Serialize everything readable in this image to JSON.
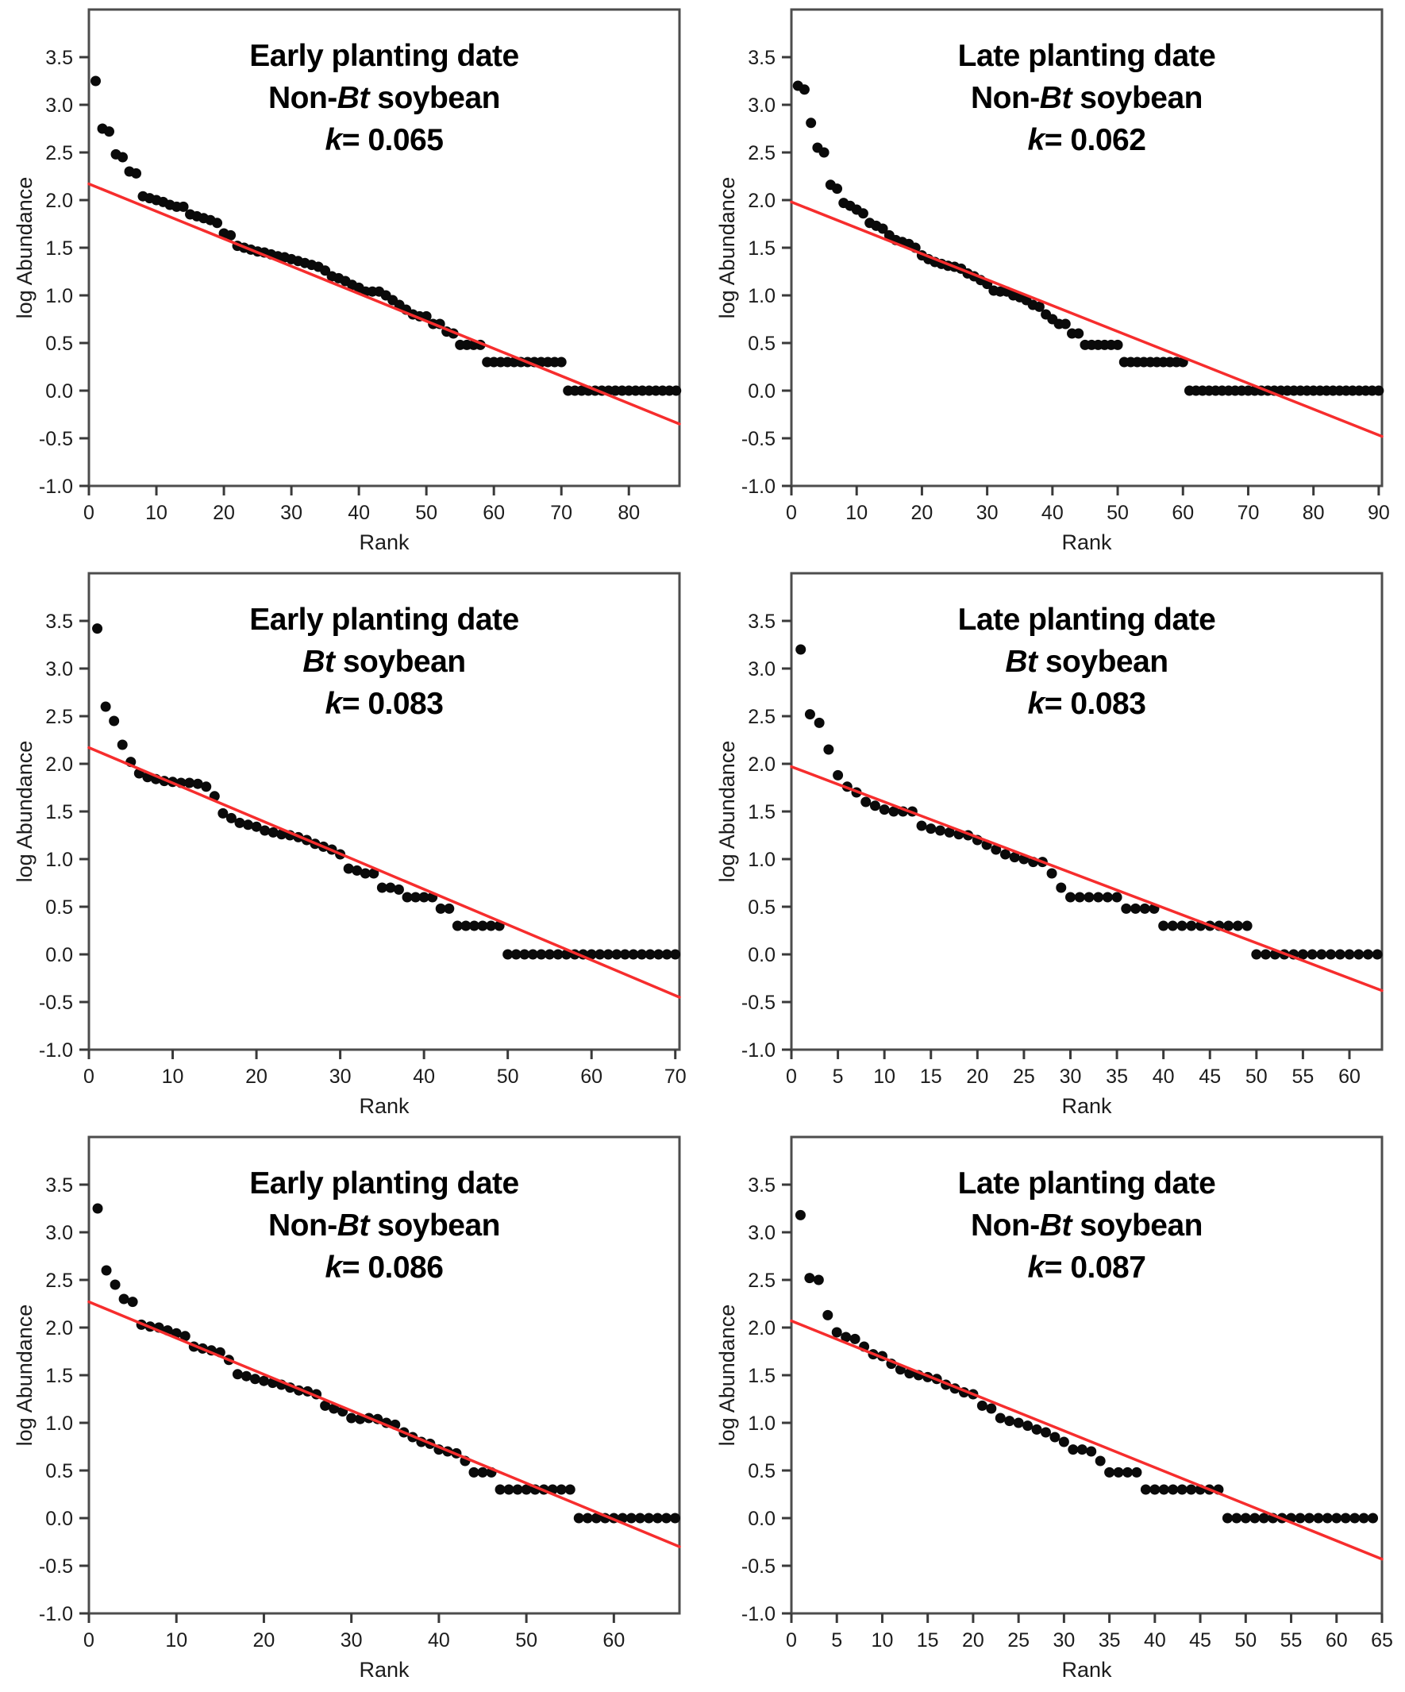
{
  "figure": {
    "ylabel": "log Abundance",
    "xlabel": "Rank",
    "colors": {
      "point": "#0a0a0a",
      "fit_line": "#f62d2d",
      "frame": "#4d4d4d",
      "tick": "#3a3a3a",
      "title_text": "#000000"
    }
  },
  "chart_data": [
    {
      "type": "scatter",
      "title": {
        "line1": "Early planting date",
        "line2_prefix": "Non-",
        "line2_italic": "Bt",
        "line2_suffix": " soybean",
        "k_italic": "k",
        "k_rest": "= 0.065"
      },
      "k": 0.065,
      "xlabel": "Rank",
      "ylabel": "log Abundance",
      "xlim": [
        0,
        87.5
      ],
      "ylim": [
        -1.0,
        4.0
      ],
      "xticks": [
        0,
        10,
        20,
        30,
        40,
        50,
        60,
        70,
        80
      ],
      "yticks": [
        3.5,
        3.0,
        2.5,
        2.0,
        1.5,
        1.0,
        0.5,
        0.0,
        -0.5,
        -1.0
      ],
      "max_rank": 87,
      "values": [
        3.25,
        2.75,
        2.72,
        2.48,
        2.45,
        2.3,
        2.28,
        2.04,
        2.02,
        2.0,
        1.98,
        1.95,
        1.93,
        1.93,
        1.85,
        1.83,
        1.81,
        1.79,
        1.76,
        1.65,
        1.63,
        1.52,
        1.5,
        1.48,
        1.46,
        1.45,
        1.43,
        1.41,
        1.4,
        1.38,
        1.36,
        1.34,
        1.32,
        1.3,
        1.26,
        1.2,
        1.18,
        1.15,
        1.11,
        1.08,
        1.04,
        1.04,
        1.04,
        1.0,
        0.95,
        0.9,
        0.85,
        0.8,
        0.78,
        0.78,
        0.7,
        0.7,
        0.62,
        0.6,
        0.48,
        0.48,
        0.48,
        0.48,
        0.3,
        0.3,
        0.3,
        0.3,
        0.3,
        0.3,
        0.3,
        0.3,
        0.3,
        0.3,
        0.3,
        0.3,
        0.0,
        0.0,
        0.0,
        0.0,
        0.0,
        0.0,
        0.0,
        0.0,
        0.0,
        0.0,
        0.0,
        0.0,
        0.0,
        0.0,
        0.0,
        0.0,
        0.0
      ],
      "fit_line": {
        "x1": 0,
        "y1": 2.17,
        "x2": 87.5,
        "y2": -0.35
      }
    },
    {
      "type": "scatter",
      "title": {
        "line1": "Late planting date",
        "line2_prefix": "Non-",
        "line2_italic": "Bt",
        "line2_suffix": " soybean",
        "k_italic": "k",
        "k_rest": "= 0.062"
      },
      "k": 0.062,
      "xlabel": "Rank",
      "ylabel": "log Abundance",
      "xlim": [
        0,
        90.5
      ],
      "ylim": [
        -1.0,
        4.0
      ],
      "xticks": [
        0,
        10,
        20,
        30,
        40,
        50,
        60,
        70,
        80,
        90
      ],
      "yticks": [
        3.5,
        3.0,
        2.5,
        2.0,
        1.5,
        1.0,
        0.5,
        0.0,
        -0.5,
        -1.0
      ],
      "max_rank": 90,
      "values": [
        3.2,
        3.16,
        2.81,
        2.55,
        2.5,
        2.16,
        2.12,
        1.97,
        1.94,
        1.9,
        1.86,
        1.76,
        1.73,
        1.7,
        1.63,
        1.58,
        1.56,
        1.54,
        1.5,
        1.42,
        1.38,
        1.35,
        1.33,
        1.31,
        1.3,
        1.28,
        1.23,
        1.2,
        1.16,
        1.12,
        1.05,
        1.04,
        1.04,
        1.0,
        0.98,
        0.95,
        0.9,
        0.88,
        0.8,
        0.75,
        0.7,
        0.7,
        0.6,
        0.6,
        0.48,
        0.48,
        0.48,
        0.48,
        0.48,
        0.48,
        0.3,
        0.3,
        0.3,
        0.3,
        0.3,
        0.3,
        0.3,
        0.3,
        0.3,
        0.3,
        0.0,
        0.0,
        0.0,
        0.0,
        0.0,
        0.0,
        0.0,
        0.0,
        0.0,
        0.0,
        0.0,
        0.0,
        0.0,
        0.0,
        0.0,
        0.0,
        0.0,
        0.0,
        0.0,
        0.0,
        0.0,
        0.0,
        0.0,
        0.0,
        0.0,
        0.0,
        0.0,
        0.0,
        0.0,
        0.0
      ],
      "fit_line": {
        "x1": 0,
        "y1": 1.98,
        "x2": 90.5,
        "y2": -0.48
      }
    },
    {
      "type": "scatter",
      "title": {
        "line1": "Early planting date",
        "line2_prefix": "",
        "line2_italic": "Bt",
        "line2_suffix": " soybean",
        "k_italic": "k",
        "k_rest": "= 0.083"
      },
      "k": 0.083,
      "xlabel": "Rank",
      "ylabel": "log Abundance",
      "xlim": [
        0,
        70.5
      ],
      "ylim": [
        -1.0,
        4.0
      ],
      "xticks": [
        0,
        10,
        20,
        30,
        40,
        50,
        60,
        70
      ],
      "yticks": [
        3.5,
        3.0,
        2.5,
        2.0,
        1.5,
        1.0,
        0.5,
        0.0,
        -0.5,
        -1.0
      ],
      "max_rank": 70,
      "values": [
        3.42,
        2.6,
        2.45,
        2.2,
        2.02,
        1.9,
        1.86,
        1.84,
        1.82,
        1.81,
        1.8,
        1.8,
        1.79,
        1.76,
        1.66,
        1.48,
        1.43,
        1.38,
        1.36,
        1.34,
        1.3,
        1.28,
        1.26,
        1.25,
        1.23,
        1.2,
        1.16,
        1.13,
        1.1,
        1.05,
        0.9,
        0.88,
        0.85,
        0.85,
        0.7,
        0.7,
        0.68,
        0.6,
        0.6,
        0.6,
        0.6,
        0.48,
        0.48,
        0.3,
        0.3,
        0.3,
        0.3,
        0.3,
        0.3,
        0.0,
        0.0,
        0.0,
        0.0,
        0.0,
        0.0,
        0.0,
        0.0,
        0.0,
        0.0,
        0.0,
        0.0,
        0.0,
        0.0,
        0.0,
        0.0,
        0.0,
        0.0,
        0.0,
        0.0,
        0.0
      ],
      "fit_line": {
        "x1": 0,
        "y1": 2.17,
        "x2": 70.5,
        "y2": -0.45
      }
    },
    {
      "type": "scatter",
      "title": {
        "line1": "Late planting date",
        "line2_prefix": "",
        "line2_italic": "Bt",
        "line2_suffix": " soybean",
        "k_italic": "k",
        "k_rest": "= 0.083"
      },
      "k": 0.083,
      "xlabel": "Rank",
      "ylabel": "log Abundance",
      "xlim": [
        0,
        63.5
      ],
      "ylim": [
        -1.0,
        4.0
      ],
      "xticks": [
        0,
        5,
        10,
        15,
        20,
        25,
        30,
        35,
        40,
        45,
        50,
        55,
        60
      ],
      "yticks": [
        3.5,
        3.0,
        2.5,
        2.0,
        1.5,
        1.0,
        0.5,
        0.0,
        -0.5,
        -1.0
      ],
      "max_rank": 63,
      "values": [
        3.2,
        2.52,
        2.43,
        2.15,
        1.88,
        1.76,
        1.7,
        1.6,
        1.56,
        1.52,
        1.5,
        1.5,
        1.5,
        1.35,
        1.32,
        1.3,
        1.28,
        1.26,
        1.25,
        1.2,
        1.15,
        1.1,
        1.05,
        1.02,
        1.0,
        0.97,
        0.97,
        0.85,
        0.7,
        0.6,
        0.6,
        0.6,
        0.6,
        0.6,
        0.6,
        0.48,
        0.48,
        0.48,
        0.48,
        0.3,
        0.3,
        0.3,
        0.3,
        0.3,
        0.3,
        0.3,
        0.3,
        0.3,
        0.3,
        0.0,
        0.0,
        0.0,
        0.0,
        0.0,
        0.0,
        0.0,
        0.0,
        0.0,
        0.0,
        0.0,
        0.0,
        0.0,
        0.0
      ],
      "fit_line": {
        "x1": 0,
        "y1": 1.97,
        "x2": 63.5,
        "y2": -0.38
      }
    },
    {
      "type": "scatter",
      "title": {
        "line1": "Early planting date",
        "line2_prefix": "Non-",
        "line2_italic": "Bt",
        "line2_suffix": " soybean",
        "k_italic": "k",
        "k_rest": "= 0.086"
      },
      "k": 0.086,
      "xlabel": "Rank",
      "ylabel": "log Abundance",
      "xlim": [
        0,
        67.5
      ],
      "ylim": [
        -1.0,
        4.0
      ],
      "xticks": [
        0,
        10,
        20,
        30,
        40,
        50,
        60
      ],
      "yticks": [
        3.5,
        3.0,
        2.5,
        2.0,
        1.5,
        1.0,
        0.5,
        0.0,
        -0.5,
        -1.0
      ],
      "max_rank": 67,
      "values": [
        3.25,
        2.6,
        2.45,
        2.3,
        2.27,
        2.03,
        2.01,
        2.0,
        1.97,
        1.94,
        1.91,
        1.8,
        1.78,
        1.76,
        1.74,
        1.66,
        1.51,
        1.49,
        1.46,
        1.44,
        1.42,
        1.4,
        1.37,
        1.34,
        1.33,
        1.3,
        1.18,
        1.15,
        1.12,
        1.05,
        1.04,
        1.05,
        1.04,
        1.0,
        0.98,
        0.9,
        0.85,
        0.8,
        0.78,
        0.72,
        0.7,
        0.68,
        0.6,
        0.48,
        0.48,
        0.48,
        0.3,
        0.3,
        0.3,
        0.3,
        0.3,
        0.3,
        0.3,
        0.3,
        0.3,
        0.0,
        0.0,
        0.0,
        0.0,
        0.0,
        0.0,
        0.0,
        0.0,
        0.0,
        0.0,
        0.0,
        0.0
      ],
      "fit_line": {
        "x1": 0,
        "y1": 2.27,
        "x2": 67.5,
        "y2": -0.3
      }
    },
    {
      "type": "scatter",
      "title": {
        "line1": "Late planting date",
        "line2_prefix": "Non-",
        "line2_italic": "Bt",
        "line2_suffix": " soybean",
        "k_italic": "k",
        "k_rest": "= 0.087"
      },
      "k": 0.087,
      "xlabel": "Rank",
      "ylabel": "log Abundance",
      "xlim": [
        0,
        65
      ],
      "ylim": [
        -1.0,
        4.0
      ],
      "xticks": [
        0,
        5,
        10,
        15,
        20,
        25,
        30,
        35,
        40,
        45,
        50,
        55,
        60,
        65
      ],
      "yticks": [
        3.5,
        3.0,
        2.5,
        2.0,
        1.5,
        1.0,
        0.5,
        0.0,
        -0.5,
        -1.0
      ],
      "max_rank": 64,
      "values": [
        3.18,
        2.52,
        2.5,
        2.13,
        1.95,
        1.9,
        1.88,
        1.8,
        1.72,
        1.7,
        1.62,
        1.56,
        1.52,
        1.5,
        1.48,
        1.46,
        1.4,
        1.36,
        1.32,
        1.3,
        1.18,
        1.15,
        1.05,
        1.02,
        1.0,
        0.97,
        0.93,
        0.9,
        0.85,
        0.8,
        0.72,
        0.72,
        0.7,
        0.6,
        0.48,
        0.48,
        0.48,
        0.48,
        0.3,
        0.3,
        0.3,
        0.3,
        0.3,
        0.3,
        0.3,
        0.3,
        0.3,
        0.0,
        0.0,
        0.0,
        0.0,
        0.0,
        0.0,
        0.0,
        0.0,
        0.0,
        0.0,
        0.0,
        0.0,
        0.0,
        0.0,
        0.0,
        0.0,
        0.0
      ],
      "fit_line": {
        "x1": 0,
        "y1": 2.07,
        "x2": 65,
        "y2": -0.43
      }
    }
  ]
}
